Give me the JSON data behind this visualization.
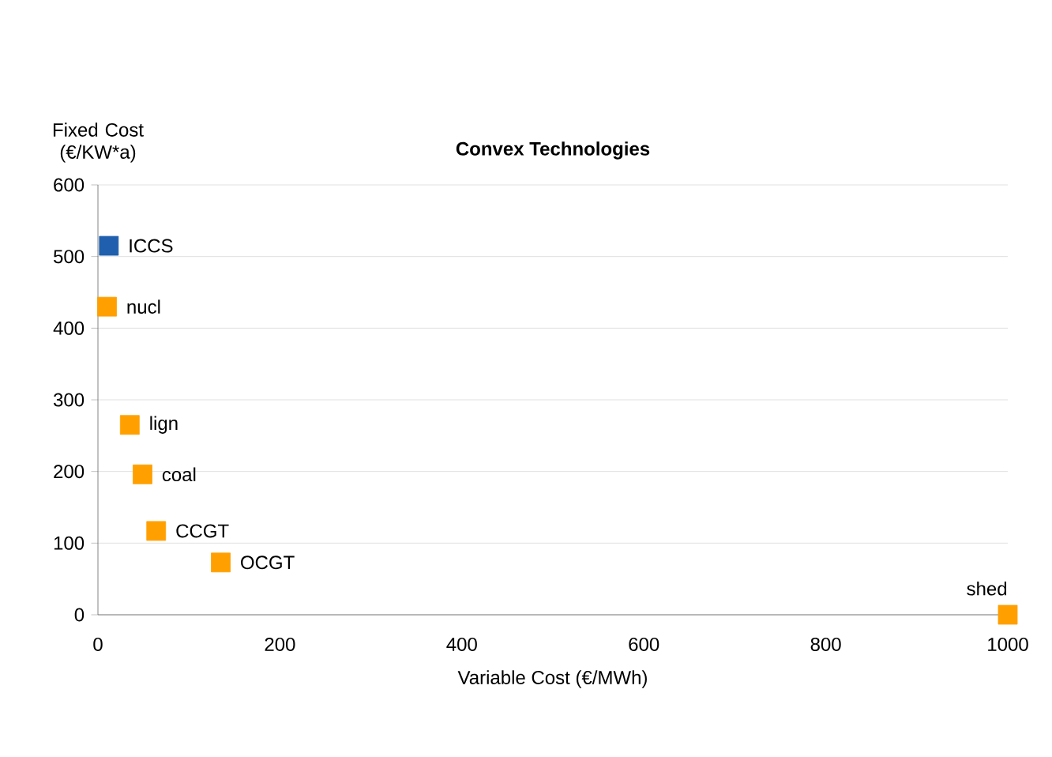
{
  "chart_data": {
    "type": "scatter",
    "title": "Convex Technologies",
    "xlabel": "Variable Cost (€/MWh)",
    "ylabel": "Fixed Cost (€/KW*a)",
    "x": [
      12,
      10,
      35,
      49,
      64,
      135,
      1000
    ],
    "values": [
      515,
      430,
      265,
      196,
      117,
      73,
      0
    ],
    "colors": [
      "#1f5fad",
      "#ffa000",
      "#ffa000",
      "#ffa000",
      "#ffa000",
      "#ffa000",
      "#ffa000"
    ],
    "marker": "square",
    "grid": "y",
    "xlim": [
      0,
      1000
    ],
    "ylim": [
      0,
      600
    ],
    "xticks": [
      0,
      200,
      400,
      600,
      800,
      1000
    ],
    "yticks": [
      0,
      100,
      200,
      300,
      400,
      500,
      600
    ],
    "annotations": [
      {
        "text": "ICCS",
        "x": 12,
        "y": 515
      },
      {
        "text": "nucl",
        "x": 10,
        "y": 430
      },
      {
        "text": "lign",
        "x": 35,
        "y": 265
      },
      {
        "text": "coal",
        "x": 49,
        "y": 196
      },
      {
        "text": "CCGT",
        "x": 64,
        "y": 117
      },
      {
        "text": "OCGT",
        "x": 135,
        "y": 73
      },
      {
        "text": "shed",
        "x": 1000,
        "y": 0
      }
    ]
  }
}
